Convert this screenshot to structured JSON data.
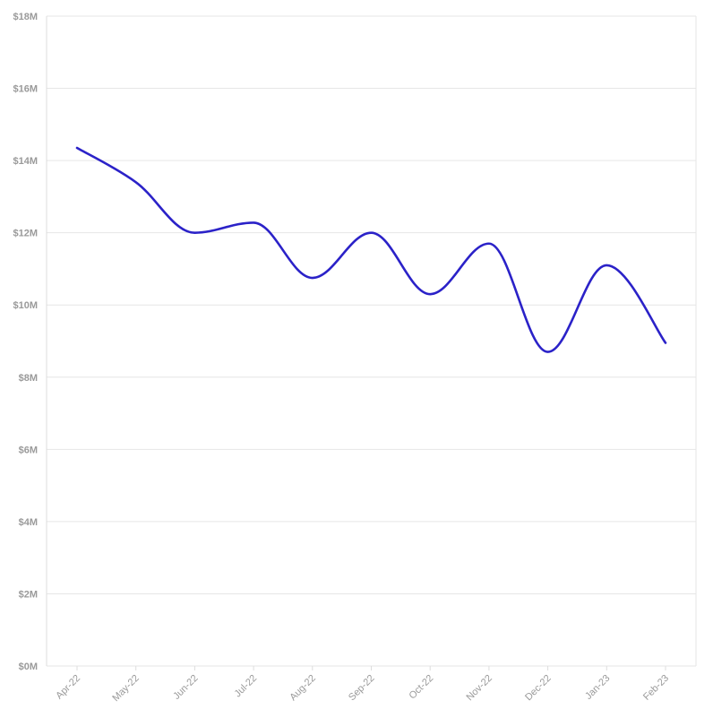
{
  "chart_data": {
    "type": "line",
    "categories": [
      "Apr-22",
      "May-22",
      "Jun-22",
      "Jul-22",
      "Aug-22",
      "Sep-22",
      "Oct-22",
      "Nov-22",
      "Dec-22",
      "Jan-23",
      "Feb-23"
    ],
    "series": [
      {
        "values": [
          14.35,
          13.4,
          12.0,
          12.28,
          10.75,
          12.0,
          10.3,
          11.7,
          8.7,
          11.1,
          8.95
        ]
      }
    ],
    "ylim": [
      0,
      18
    ],
    "yticks": [
      0,
      2,
      4,
      6,
      8,
      10,
      12,
      14,
      16,
      18
    ],
    "ytick_labels": [
      "$0M",
      "$2M",
      "$4M",
      "$6M",
      "$8M",
      "$10M",
      "$12M",
      "$14M",
      "$16M",
      "$18M"
    ],
    "smooth": true,
    "grid": true,
    "legend": "none",
    "colors": {
      "series": "#2b22c8",
      "grid": "#e6e6e6",
      "tick_text": "#9a9a9a"
    }
  }
}
